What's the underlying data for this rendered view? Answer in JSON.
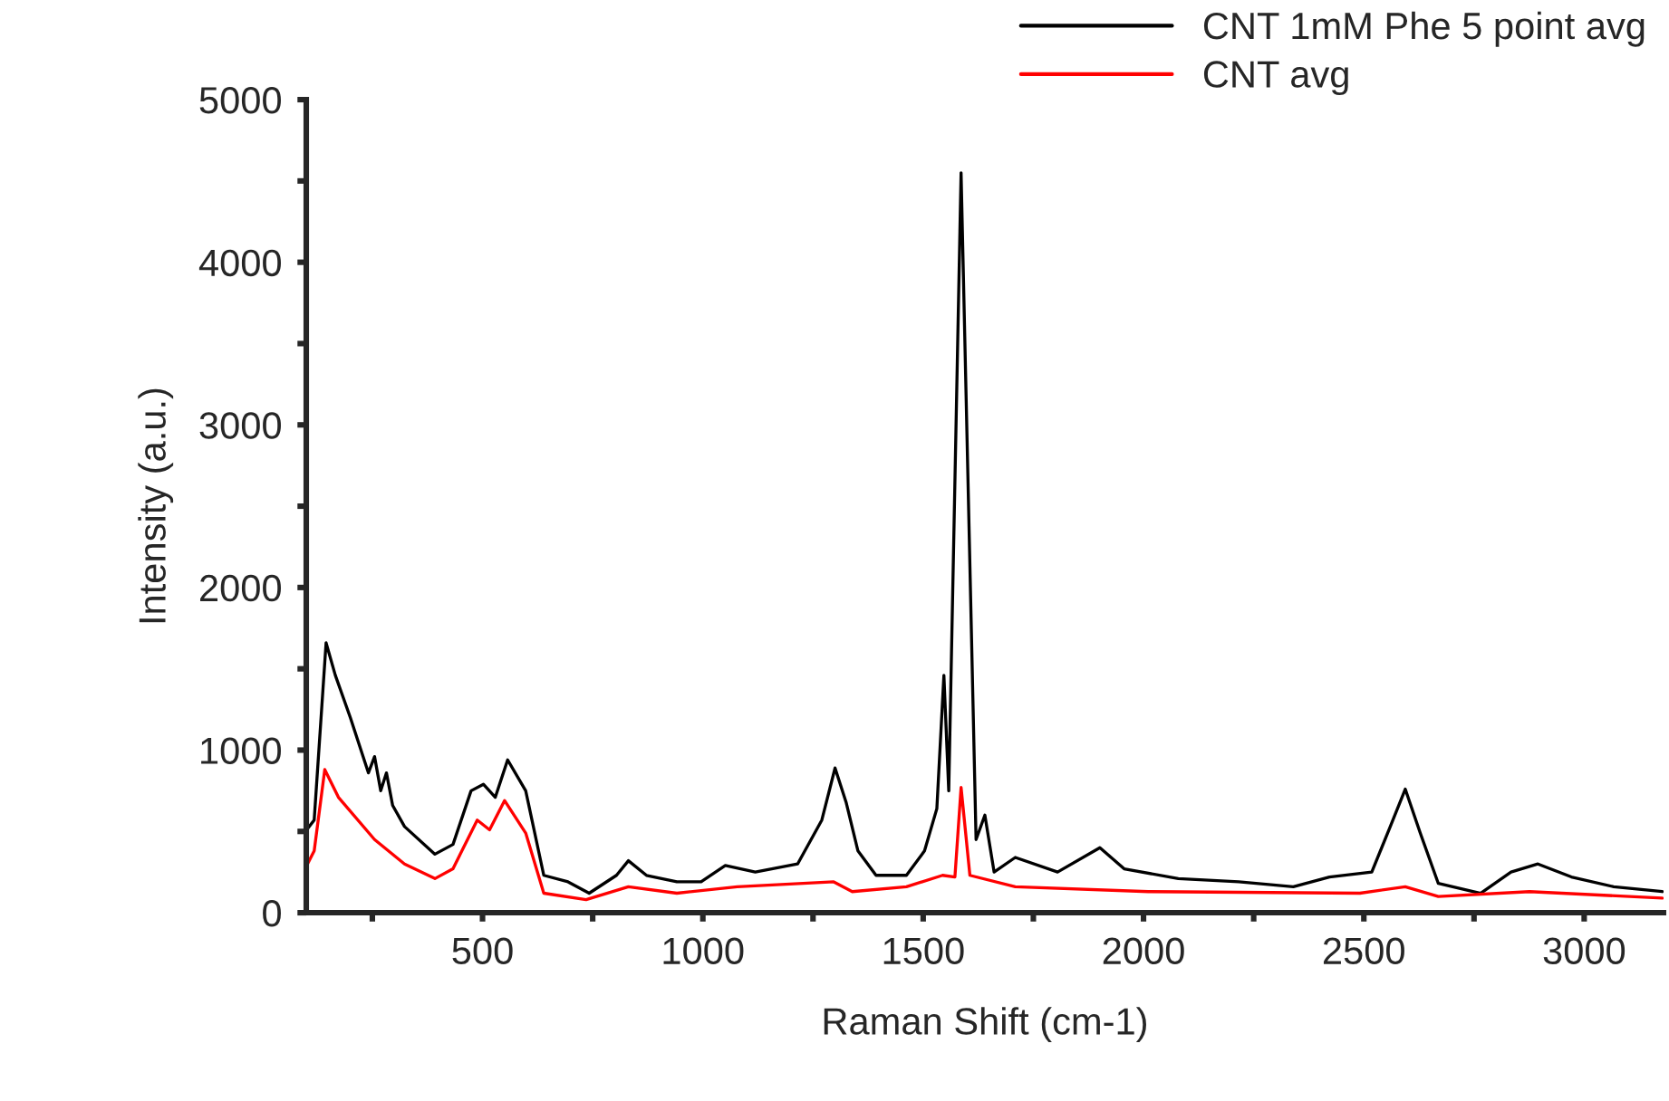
{
  "chart_data": {
    "type": "line",
    "xlabel": "Raman Shift (cm-1)",
    "ylabel": "Intensity (a.u.)",
    "xlim": [
      100,
      3180
    ],
    "ylim": [
      0,
      5000
    ],
    "xticks": [
      {
        "value": 250,
        "label": null
      },
      500,
      {
        "value": 750,
        "label": null
      },
      1000,
      {
        "value": 1250,
        "label": null
      },
      1500,
      {
        "value": 1750,
        "label": null
      },
      2000,
      {
        "value": 2250,
        "label": null
      },
      2500,
      {
        "value": 2750,
        "label": null
      },
      3000
    ],
    "yticks": [
      0,
      {
        "value": 500,
        "label": null
      },
      1000,
      {
        "value": 1500,
        "label": null
      },
      2000,
      {
        "value": 2500,
        "label": null
      },
      3000,
      {
        "value": 3500,
        "label": null
      },
      4000,
      {
        "value": 4500,
        "label": null
      },
      5000
    ],
    "grid": false,
    "legend": "top right",
    "marker": "none",
    "line_style": "solid",
    "series": [
      {
        "name": "CNT 1mM Phe 5 point avg",
        "color": "#000000",
        "x": [
          101,
          118,
          145,
          166,
          200,
          241,
          255,
          269,
          282,
          296,
          323,
          392,
          433,
          474,
          502,
          529,
          557,
          598,
          639,
          694,
          742,
          804,
          831,
          872,
          941,
          996,
          1051,
          1119,
          1215,
          1270,
          1300,
          1325,
          1352,
          1393,
          1462,
          1503,
          1531,
          1547,
          1558,
          1586,
          1620,
          1640,
          1661,
          1709,
          1805,
          1901,
          1956,
          2079,
          2216,
          2340,
          2422,
          2518,
          2560,
          2594,
          2628,
          2669,
          2765,
          2834,
          2895,
          2971,
          3067,
          3177
        ],
        "values": [
          510,
          570,
          1660,
          1460,
          1200,
          860,
          960,
          750,
          860,
          660,
          530,
          360,
          420,
          750,
          790,
          710,
          940,
          750,
          230,
          190,
          120,
          230,
          320,
          230,
          190,
          190,
          290,
          250,
          300,
          570,
          890,
          680,
          380,
          230,
          230,
          380,
          640,
          1460,
          750,
          4550,
          450,
          600,
          250,
          340,
          250,
          400,
          270,
          210,
          190,
          160,
          220,
          250,
          530,
          760,
          490,
          180,
          120,
          250,
          300,
          220,
          160,
          130
        ]
      },
      {
        "name": "CNT avg",
        "color": "#ff0000",
        "x": [
          101,
          118,
          142,
          173,
          255,
          323,
          392,
          433,
          488,
          516,
          550,
          598,
          639,
          735,
          831,
          941,
          1078,
          1297,
          1339,
          1462,
          1544,
          1572,
          1586,
          1606,
          1709,
          2011,
          2491,
          2594,
          2669,
          2876,
          3177
        ],
        "values": [
          290,
          380,
          880,
          710,
          450,
          300,
          210,
          270,
          570,
          510,
          690,
          490,
          120,
          80,
          160,
          120,
          160,
          190,
          130,
          160,
          230,
          220,
          770,
          230,
          160,
          130,
          120,
          160,
          100,
          130,
          90
        ]
      }
    ]
  }
}
